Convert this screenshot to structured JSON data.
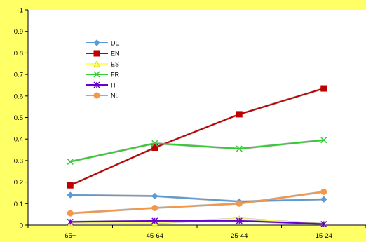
{
  "chart_data": {
    "type": "line",
    "title": "",
    "xlabel": "",
    "ylabel": "",
    "categories": [
      "65+",
      "45-64",
      "25-44",
      "15-24"
    ],
    "ylim": [
      0,
      1
    ],
    "yticks": [
      "0",
      "0.1",
      "0.2",
      "0.3",
      "0.4",
      "0.5",
      "0.6",
      "0.7",
      "0.8",
      "0.9",
      "1"
    ],
    "grid": false,
    "legend_position": "upper-left",
    "series": [
      {
        "name": "DE",
        "color": "#5B9BD5",
        "marker": "diamond",
        "values": [
          0.14,
          0.135,
          0.11,
          0.12
        ]
      },
      {
        "name": "EN",
        "color": "#C00000",
        "marker": "square",
        "values": [
          0.185,
          0.36,
          0.515,
          0.635
        ]
      },
      {
        "name": "ES",
        "color": "#FFFF66",
        "marker": "triangle",
        "values": [
          0.01,
          0.01,
          0.03,
          0.005
        ]
      },
      {
        "name": "FR",
        "color": "#33CC33",
        "marker": "x",
        "values": [
          0.295,
          0.38,
          0.355,
          0.395
        ]
      },
      {
        "name": "IT",
        "color": "#6600CC",
        "marker": "star",
        "values": [
          0.015,
          0.02,
          0.02,
          0.005
        ]
      },
      {
        "name": "NL",
        "color": "#F79646",
        "marker": "circle",
        "values": [
          0.055,
          0.08,
          0.1,
          0.155
        ]
      }
    ]
  }
}
